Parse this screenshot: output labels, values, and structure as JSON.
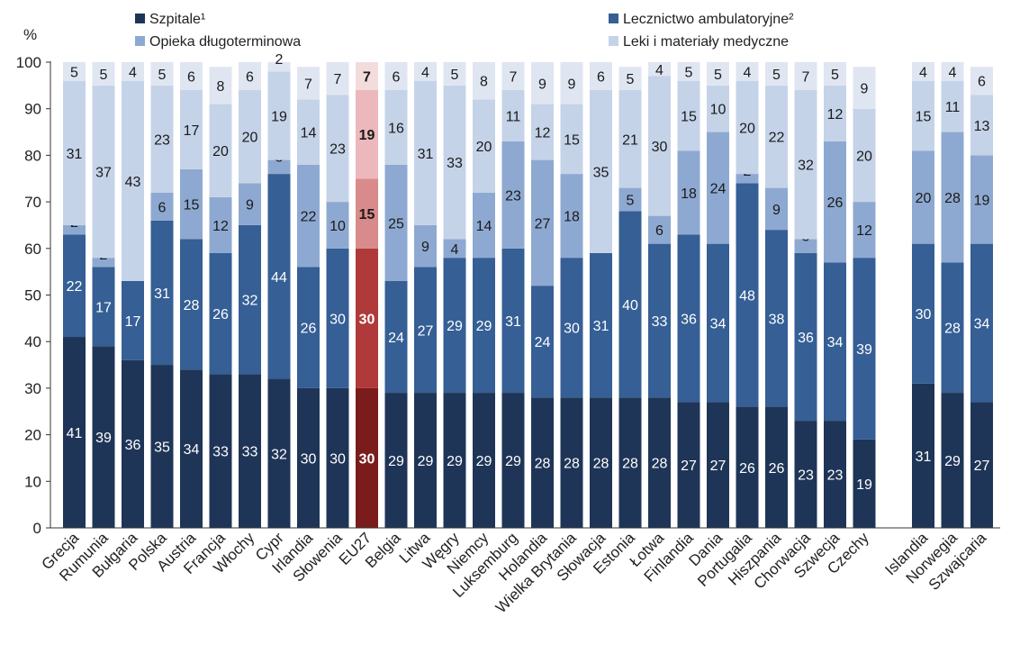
{
  "chart_data": {
    "type": "bar",
    "stacked": true,
    "y_unit_label": "%",
    "ylim": [
      0,
      100
    ],
    "yticks": [
      0,
      10,
      20,
      30,
      40,
      50,
      60,
      70,
      80,
      90,
      100
    ],
    "grid": false,
    "legend_position": "top",
    "categories": [
      "Grecja",
      "Rumunia",
      "Bułgaria",
      "Polska",
      "Austria",
      "Francja",
      "Włochy",
      "Cypr",
      "Irlandia",
      "Słowenia",
      "EU27",
      "Belgia",
      "Litwa",
      "Węgry",
      "Niemcy",
      "Luksemburg",
      "Holandia",
      "Wielka Brytania",
      "Słowacja",
      "Estonia",
      "Łotwa",
      "Finlandia",
      "Dania",
      "Portugalia",
      "Hiszpania",
      "Chorwacja",
      "Szwecja",
      "Czechy",
      "Islandia",
      "Norwegia",
      "Szwajcaria"
    ],
    "highlight_category": "EU27",
    "groups_gap_before": "Islandia",
    "series": [
      {
        "name": "Szpitale¹",
        "color": "#1f3557",
        "highlight_color": "#7b1c1c",
        "values": [
          41,
          39,
          36,
          35,
          34,
          33,
          33,
          32,
          30,
          30,
          30,
          29,
          29,
          29,
          29,
          29,
          28,
          28,
          28,
          28,
          28,
          27,
          27,
          26,
          26,
          23,
          23,
          19,
          31,
          29,
          27
        ]
      },
      {
        "name": "Lecznictwo ambulatoryjne²",
        "color": "#355f95",
        "highlight_color": "#b03a3a",
        "values": [
          22,
          17,
          17,
          31,
          28,
          26,
          32,
          44,
          26,
          30,
          30,
          24,
          27,
          29,
          29,
          31,
          24,
          30,
          31,
          40,
          33,
          36,
          34,
          48,
          38,
          36,
          34,
          39,
          30,
          28,
          34
        ]
      },
      {
        "name": "Opieka długoterminowa",
        "color": "#8ea9d1",
        "highlight_color": "#d98a8a",
        "values": [
          2,
          2,
          0,
          6,
          15,
          12,
          9,
          3,
          22,
          10,
          15,
          25,
          9,
          4,
          14,
          23,
          27,
          18,
          0,
          5,
          6,
          18,
          24,
          2,
          9,
          3,
          26,
          12,
          20,
          28,
          19
        ]
      },
      {
        "name": "Leki i materiały medyczne",
        "color": "#c5d3e8",
        "highlight_color": "#ecb8bc",
        "values": [
          31,
          37,
          43,
          23,
          17,
          20,
          20,
          19,
          14,
          23,
          19,
          16,
          31,
          33,
          20,
          11,
          12,
          15,
          35,
          21,
          30,
          15,
          10,
          20,
          22,
          32,
          12,
          20,
          15,
          11,
          13
        ]
      },
      {
        "name": "",
        "color": "#dfe6f1",
        "highlight_color": "#f3dcdc",
        "values": [
          5,
          5,
          4,
          5,
          6,
          8,
          6,
          2,
          7,
          7,
          7,
          6,
          4,
          5,
          8,
          7,
          9,
          9,
          6,
          5,
          4,
          5,
          5,
          4,
          5,
          7,
          5,
          9,
          4,
          4,
          6
        ]
      }
    ],
    "labels": [
      [
        "41",
        "22",
        "2",
        "31",
        "5"
      ],
      [
        "39",
        "17",
        "2",
        "37",
        "5"
      ],
      [
        "36",
        "17",
        "",
        "43",
        "4"
      ],
      [
        "35",
        "31",
        "6",
        "23",
        "5"
      ],
      [
        "34",
        "28",
        "15",
        "17",
        "6"
      ],
      [
        "33",
        "26",
        "12",
        "20",
        "8"
      ],
      [
        "33",
        "32",
        "9",
        "20",
        "6"
      ],
      [
        "32",
        "44",
        "3",
        "19",
        "2"
      ],
      [
        "30",
        "26",
        "22",
        "14",
        "7"
      ],
      [
        "30",
        "30",
        "10",
        "23",
        "7"
      ],
      [
        "30",
        "30",
        "15",
        "19",
        "7"
      ],
      [
        "29",
        "24",
        "25",
        "16",
        "6"
      ],
      [
        "29",
        "27",
        "9",
        "31",
        "4"
      ],
      [
        "29",
        "29",
        "4",
        "33",
        "5"
      ],
      [
        "29",
        "29",
        "14",
        "20",
        "8"
      ],
      [
        "29",
        "31",
        "23",
        "11",
        "7"
      ],
      [
        "28",
        "24",
        "27",
        "12",
        "9"
      ],
      [
        "28",
        "30",
        "18",
        "15",
        "9"
      ],
      [
        "28",
        "31",
        "",
        "35",
        "6"
      ],
      [
        "28",
        "40",
        "5",
        "21",
        "5"
      ],
      [
        "28",
        "33",
        "6",
        "30",
        "4"
      ],
      [
        "27",
        "36",
        "18",
        "15",
        "5"
      ],
      [
        "27",
        "34",
        "24",
        "10",
        "5"
      ],
      [
        "26",
        "48",
        "2",
        "20",
        "4"
      ],
      [
        "26",
        "38",
        "9",
        "22",
        "5"
      ],
      [
        "23",
        "36",
        "3",
        "32",
        "7"
      ],
      [
        "23",
        "34",
        "26",
        "12",
        "5"
      ],
      [
        "19",
        "39",
        "12",
        "20",
        "9"
      ],
      [
        "31",
        "30",
        "20",
        "15",
        "4"
      ],
      [
        "29",
        "28",
        "28",
        "11",
        "4"
      ],
      [
        "27",
        "34",
        "19",
        "13",
        "6"
      ]
    ]
  }
}
